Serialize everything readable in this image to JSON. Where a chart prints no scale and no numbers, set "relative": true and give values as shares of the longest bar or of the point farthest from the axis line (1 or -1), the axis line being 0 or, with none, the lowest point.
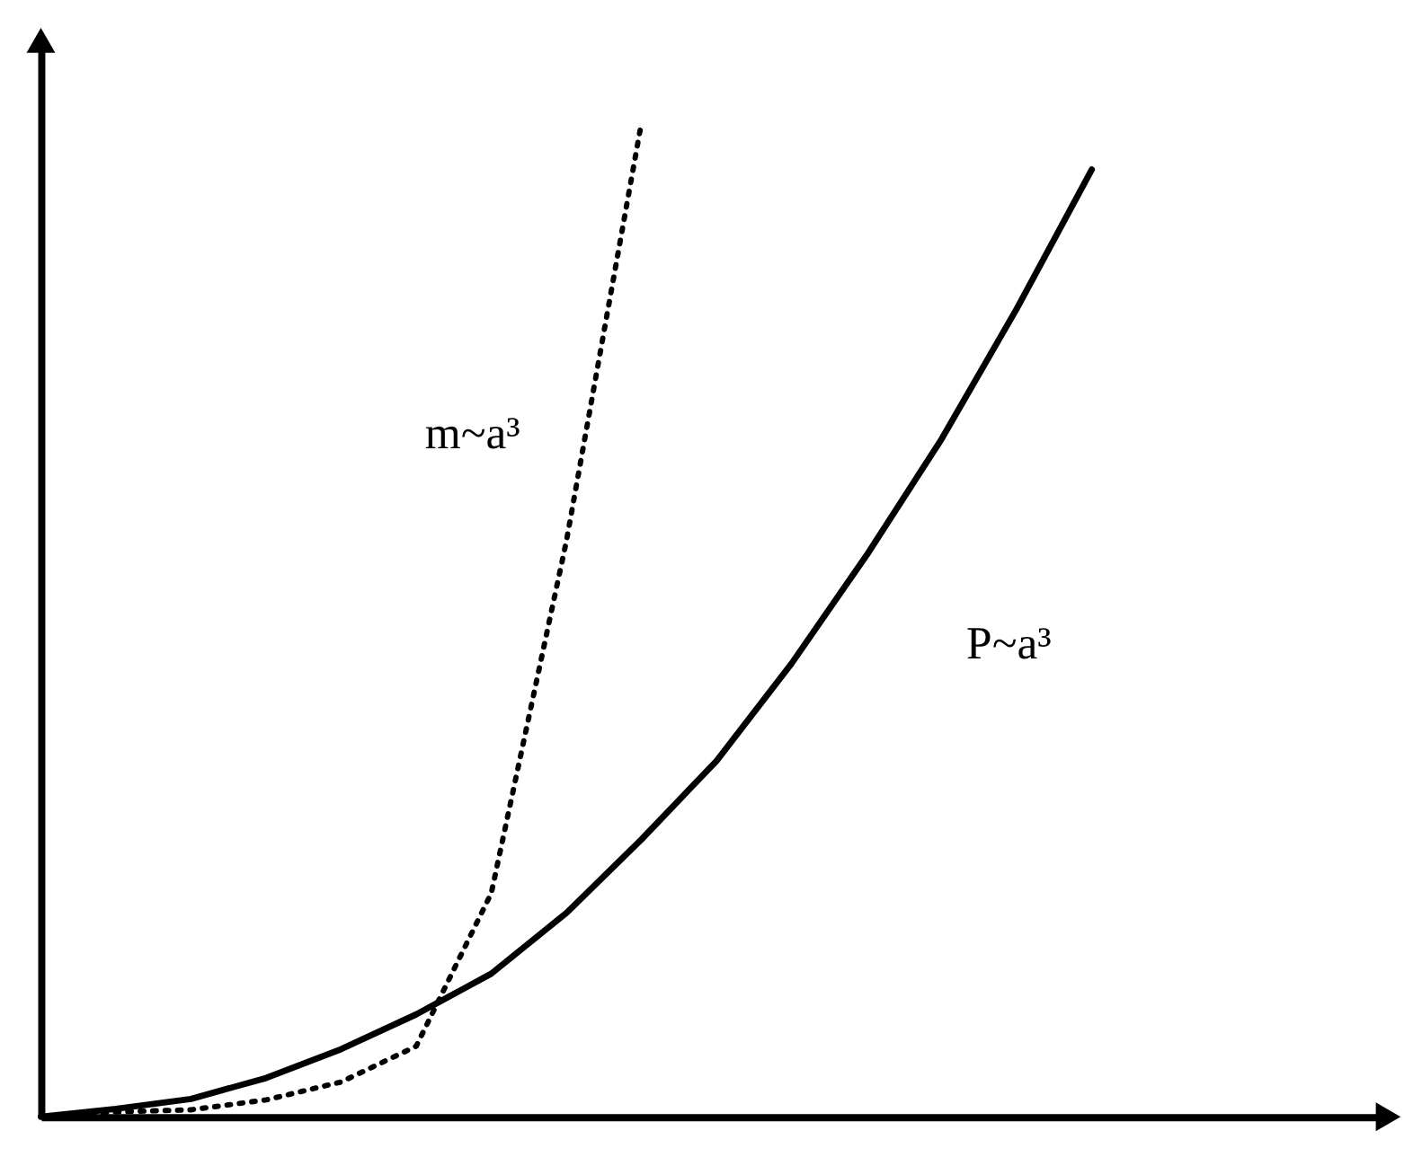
{
  "chart_data": {
    "type": "line",
    "relative": true,
    "grid": false,
    "marker": "none",
    "categories": [
      null,
      null,
      null,
      null,
      null,
      null,
      null,
      null,
      null,
      null,
      null,
      null,
      null,
      null,
      null
    ],
    "series": [
      {
        "name": "m~a³",
        "color": "#000000",
        "line_style": "dotted",
        "values": [
          0,
          0.005,
          0.007,
          0.017,
          0.035,
          0.071,
          0.225,
          0.579,
          1,
          null,
          null,
          null,
          null,
          null,
          null
        ]
      },
      {
        "name": "P~a³",
        "color": "#000000",
        "line_style": "solid",
        "values": [
          0,
          0.008,
          0.018,
          0.039,
          0.068,
          0.103,
          0.144,
          0.205,
          0.279,
          0.358,
          0.456,
          0.565,
          0.682,
          0.813,
          0.953
        ]
      }
    ]
  }
}
